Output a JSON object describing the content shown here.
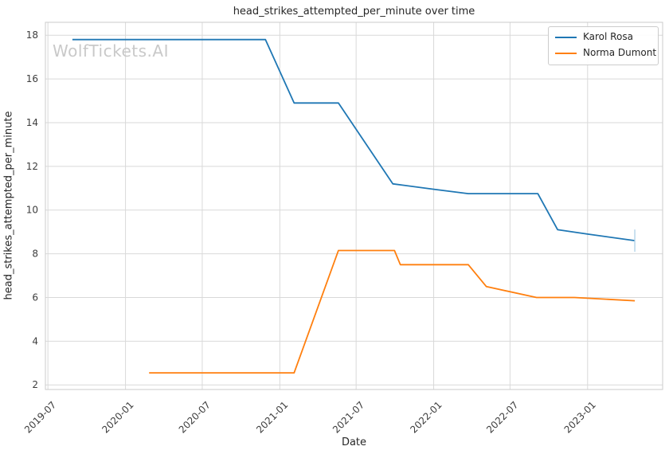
{
  "title": "head_strikes_attempted_per_minute over time",
  "watermark": "WolfTickets.AI",
  "xlabel": "Date",
  "ylabel": "head_strikes_attempted_per_minute",
  "legend": {
    "position": "upper-right",
    "entries": [
      {
        "label": "Karol Rosa",
        "color": "#1f77b4"
      },
      {
        "label": "Norma Dumont",
        "color": "#ff7f0e"
      }
    ]
  },
  "axes": {
    "x_tick_labels": [
      "2019-07",
      "2020-01",
      "2020-07",
      "2021-01",
      "2021-07",
      "2022-01",
      "2022-07",
      "2023-01"
    ],
    "y_tick_labels": [
      2,
      4,
      6,
      8,
      10,
      12,
      14,
      16,
      18
    ],
    "xlim": [
      "2019-06-25",
      "2023-06-28"
    ],
    "ylim": [
      1.79,
      18.59
    ],
    "grid": true,
    "grid_color": "#d9d9d9",
    "spine_color": "#cbcbcb",
    "tick_label_color": "#3d3d3d"
  },
  "chart_data": {
    "type": "line",
    "title": "head_strikes_attempted_per_minute over time",
    "xlabel": "Date",
    "ylabel": "head_strikes_attempted_per_minute",
    "legend_position": "upper-right",
    "series": [
      {
        "name": "Karol Rosa",
        "color": "#1f77b4",
        "end_cap": true,
        "end_cap_color": "#b3d3e8",
        "points": [
          [
            "2019-08-28",
            17.8
          ],
          [
            "2020-11-28",
            17.8
          ],
          [
            "2021-02-04",
            14.9
          ],
          [
            "2021-05-20",
            14.9
          ],
          [
            "2021-09-26",
            11.2
          ],
          [
            "2022-01-01",
            10.95
          ],
          [
            "2022-03-24",
            10.75
          ],
          [
            "2022-09-05",
            10.75
          ],
          [
            "2022-10-22",
            9.1
          ],
          [
            "2023-01-01",
            8.9
          ],
          [
            "2023-04-23",
            8.6
          ]
        ]
      },
      {
        "name": "Norma Dumont",
        "color": "#ff7f0e",
        "end_cap": false,
        "points": [
          [
            "2020-02-26",
            2.55
          ],
          [
            "2021-02-04",
            2.55
          ],
          [
            "2021-05-20",
            8.15
          ],
          [
            "2021-09-30",
            8.15
          ],
          [
            "2021-10-14",
            7.5
          ],
          [
            "2022-03-24",
            7.5
          ],
          [
            "2022-05-06",
            6.5
          ],
          [
            "2022-09-02",
            6.0
          ],
          [
            "2022-12-01",
            6.0
          ],
          [
            "2023-04-23",
            5.85
          ]
        ]
      }
    ]
  }
}
